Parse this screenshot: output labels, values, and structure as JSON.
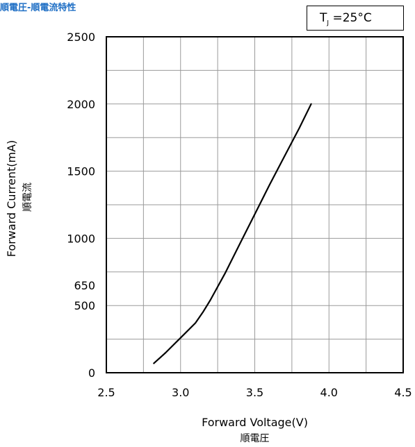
{
  "title": "順電圧-順電流特性",
  "condition": {
    "symbol": "T",
    "subscript": "J",
    "value": "=25°C"
  },
  "chart_data": {
    "type": "line",
    "xlabel": "Forward Voltage(V)",
    "xlabel_sub": "順電圧",
    "ylabel": "Forward Current(mA)",
    "ylabel_sub": "順電流",
    "xlim": [
      2.5,
      4.5
    ],
    "ylim": [
      0,
      2500
    ],
    "x_ticks": [
      2.5,
      3.0,
      3.5,
      4.0,
      4.5
    ],
    "x_tick_labels": [
      "2.5",
      "3.0",
      "3.5",
      "4.0",
      "4.5"
    ],
    "y_ticks": [
      0,
      500,
      650,
      1000,
      1500,
      2000,
      2500
    ],
    "y_tick_labels": [
      "0",
      "500",
      "650",
      "1000",
      "1500",
      "2000",
      "2500"
    ],
    "x_grid": [
      2.5,
      2.75,
      3.0,
      3.25,
      3.5,
      3.75,
      4.0,
      4.25,
      4.5
    ],
    "y_grid": [
      0,
      250,
      500,
      750,
      1000,
      1250,
      1500,
      1750,
      2000,
      2250,
      2500
    ],
    "grid": true,
    "series": [
      {
        "x": [
          2.82,
          2.9,
          3.0,
          3.1,
          3.15,
          3.2,
          3.3,
          3.4,
          3.5,
          3.6,
          3.7,
          3.8,
          3.88
        ],
        "y": [
          70,
          150,
          260,
          370,
          450,
          540,
          740,
          960,
          1180,
          1400,
          1610,
          1820,
          2000
        ]
      }
    ]
  }
}
